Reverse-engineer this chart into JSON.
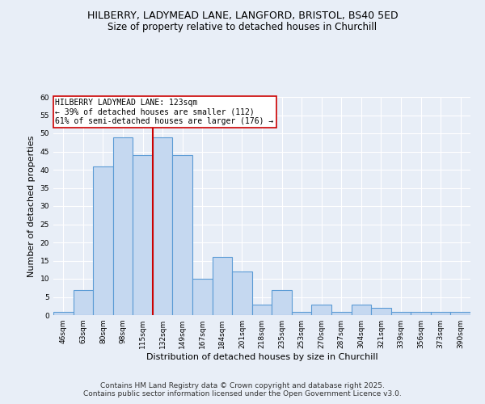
{
  "title_line1": "HILBERRY, LADYMEAD LANE, LANGFORD, BRISTOL, BS40 5ED",
  "title_line2": "Size of property relative to detached houses in Churchill",
  "xlabel": "Distribution of detached houses by size in Churchill",
  "ylabel": "Number of detached properties",
  "bar_values": [
    1,
    7,
    41,
    49,
    44,
    49,
    44,
    10,
    16,
    12,
    3,
    7,
    1,
    3,
    1,
    3,
    2,
    1,
    1,
    1,
    1
  ],
  "bar_labels": [
    "46sqm",
    "63sqm",
    "80sqm",
    "98sqm",
    "115sqm",
    "132sqm",
    "149sqm",
    "167sqm",
    "184sqm",
    "201sqm",
    "218sqm",
    "235sqm",
    "253sqm",
    "270sqm",
    "287sqm",
    "304sqm",
    "321sqm",
    "339sqm",
    "356sqm",
    "373sqm",
    "390sqm"
  ],
  "bar_color": "#c5d8f0",
  "bar_edge_color": "#5b9bd5",
  "bar_edge_width": 0.8,
  "red_line_x": 4.5,
  "red_line_color": "#cc0000",
  "annotation_text": "HILBERRY LADYMEAD LANE: 123sqm\n← 39% of detached houses are smaller (112)\n61% of semi-detached houses are larger (176) →",
  "annotation_box_color": "#ffffff",
  "annotation_box_edge_color": "#cc0000",
  "annotation_fontsize": 7.0,
  "ylim": [
    0,
    60
  ],
  "yticks": [
    0,
    5,
    10,
    15,
    20,
    25,
    30,
    35,
    40,
    45,
    50,
    55,
    60
  ],
  "background_color": "#e8eef7",
  "axes_background": "#e8eef7",
  "title_fontsize": 9,
  "subtitle_fontsize": 8.5,
  "axis_label_fontsize": 8,
  "tick_fontsize": 6.5,
  "footer_text": "Contains HM Land Registry data © Crown copyright and database right 2025.\nContains public sector information licensed under the Open Government Licence v3.0.",
  "footer_fontsize": 6.5
}
